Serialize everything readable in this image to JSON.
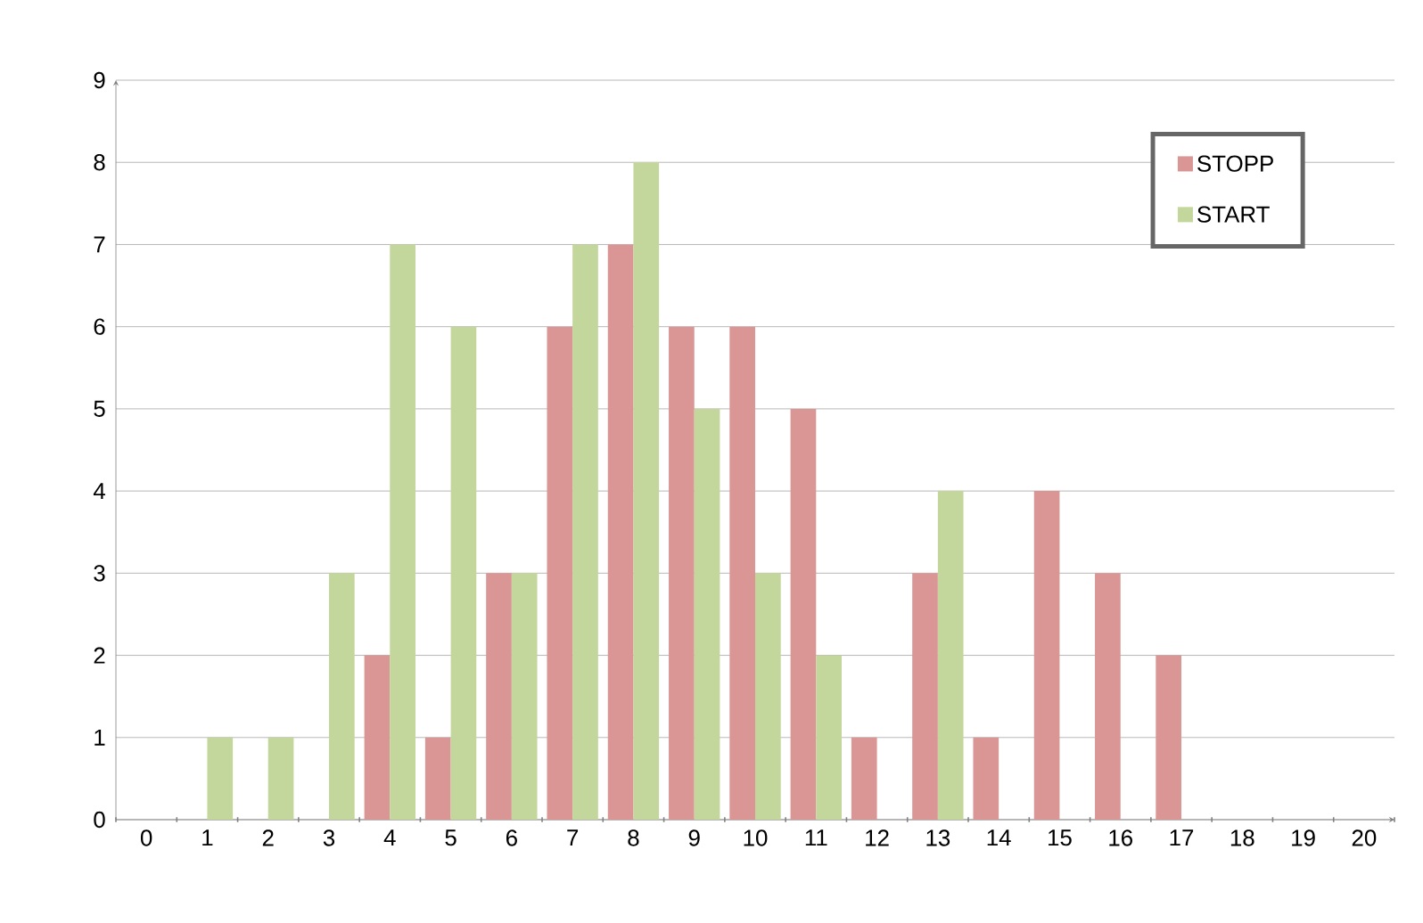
{
  "chart_data": {
    "type": "bar",
    "categories": [
      "0",
      "1",
      "2",
      "3",
      "4",
      "5",
      "6",
      "7",
      "8",
      "9",
      "10",
      "11",
      "12",
      "13",
      "14",
      "15",
      "16",
      "17",
      "18",
      "19",
      "20"
    ],
    "series": [
      {
        "name": "STOPP",
        "color": "#d99694",
        "values": [
          0,
          0,
          0,
          0,
          2,
          1,
          3,
          6,
          7,
          6,
          6,
          5,
          1,
          3,
          1,
          4,
          3,
          2,
          0,
          0,
          0
        ]
      },
      {
        "name": "START",
        "color": "#c3d69b",
        "values": [
          0,
          1,
          1,
          3,
          7,
          6,
          3,
          7,
          8,
          5,
          3,
          2,
          0,
          4,
          0,
          0,
          0,
          0,
          0,
          0,
          0
        ]
      }
    ],
    "ylim": [
      0,
      9
    ],
    "yticks": [
      0,
      1,
      2,
      3,
      4,
      5,
      6,
      7,
      8,
      9
    ],
    "grid": "y",
    "legend": "top right"
  }
}
